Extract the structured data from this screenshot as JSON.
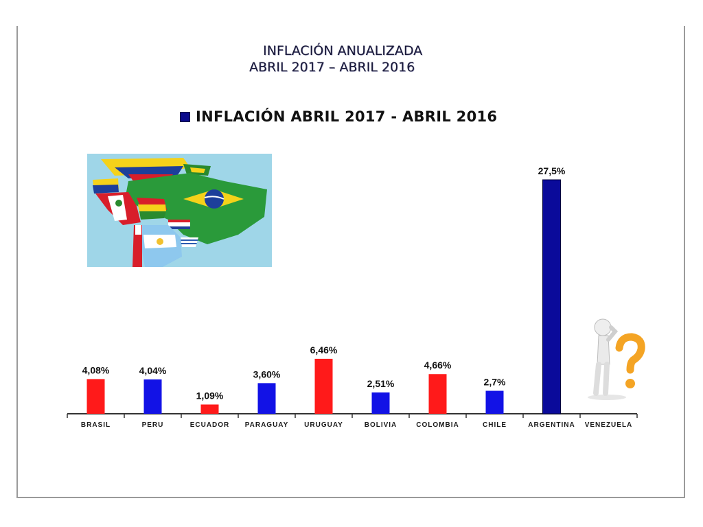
{
  "title": {
    "line1": "INFLACIÓN ANUALIZADA",
    "line2": "ABRIL 2017 – ABRIL 2016"
  },
  "chart_data": {
    "type": "bar",
    "series": [
      {
        "name": "INFLACIÓN ABRIL 2017 - ABRIL 2016",
        "values": [
          4.08,
          4.04,
          1.09,
          3.6,
          6.46,
          2.51,
          4.66,
          2.7,
          27.5,
          null
        ],
        "labels": [
          "4,08%",
          "4,04%",
          "1,09%",
          "3,60%",
          "6,46%",
          "2,51%",
          "4,66%",
          "2,7%",
          "27,5%",
          ""
        ]
      }
    ],
    "categories": [
      "BRASIL",
      "PERU",
      "ECUADOR",
      "PARAGUAY",
      "URUGUAY",
      "BOLIVIA",
      "COLOMBIA",
      "CHILE",
      "ARGENTINA",
      "VENEZUELA"
    ],
    "bar_colors": [
      "#ff1a1a",
      "#1212e6",
      "#ff1a1a",
      "#1212e6",
      "#ff1a1a",
      "#1212e6",
      "#ff1a1a",
      "#1212e6",
      "#0a0a9a",
      "#1212e6"
    ],
    "ylim": [
      0,
      27.5
    ],
    "grid": false,
    "legend_position": "top"
  },
  "illustrations": {
    "map": "south-america-flags-map",
    "thinker": "thinking-figure-question-mark"
  }
}
